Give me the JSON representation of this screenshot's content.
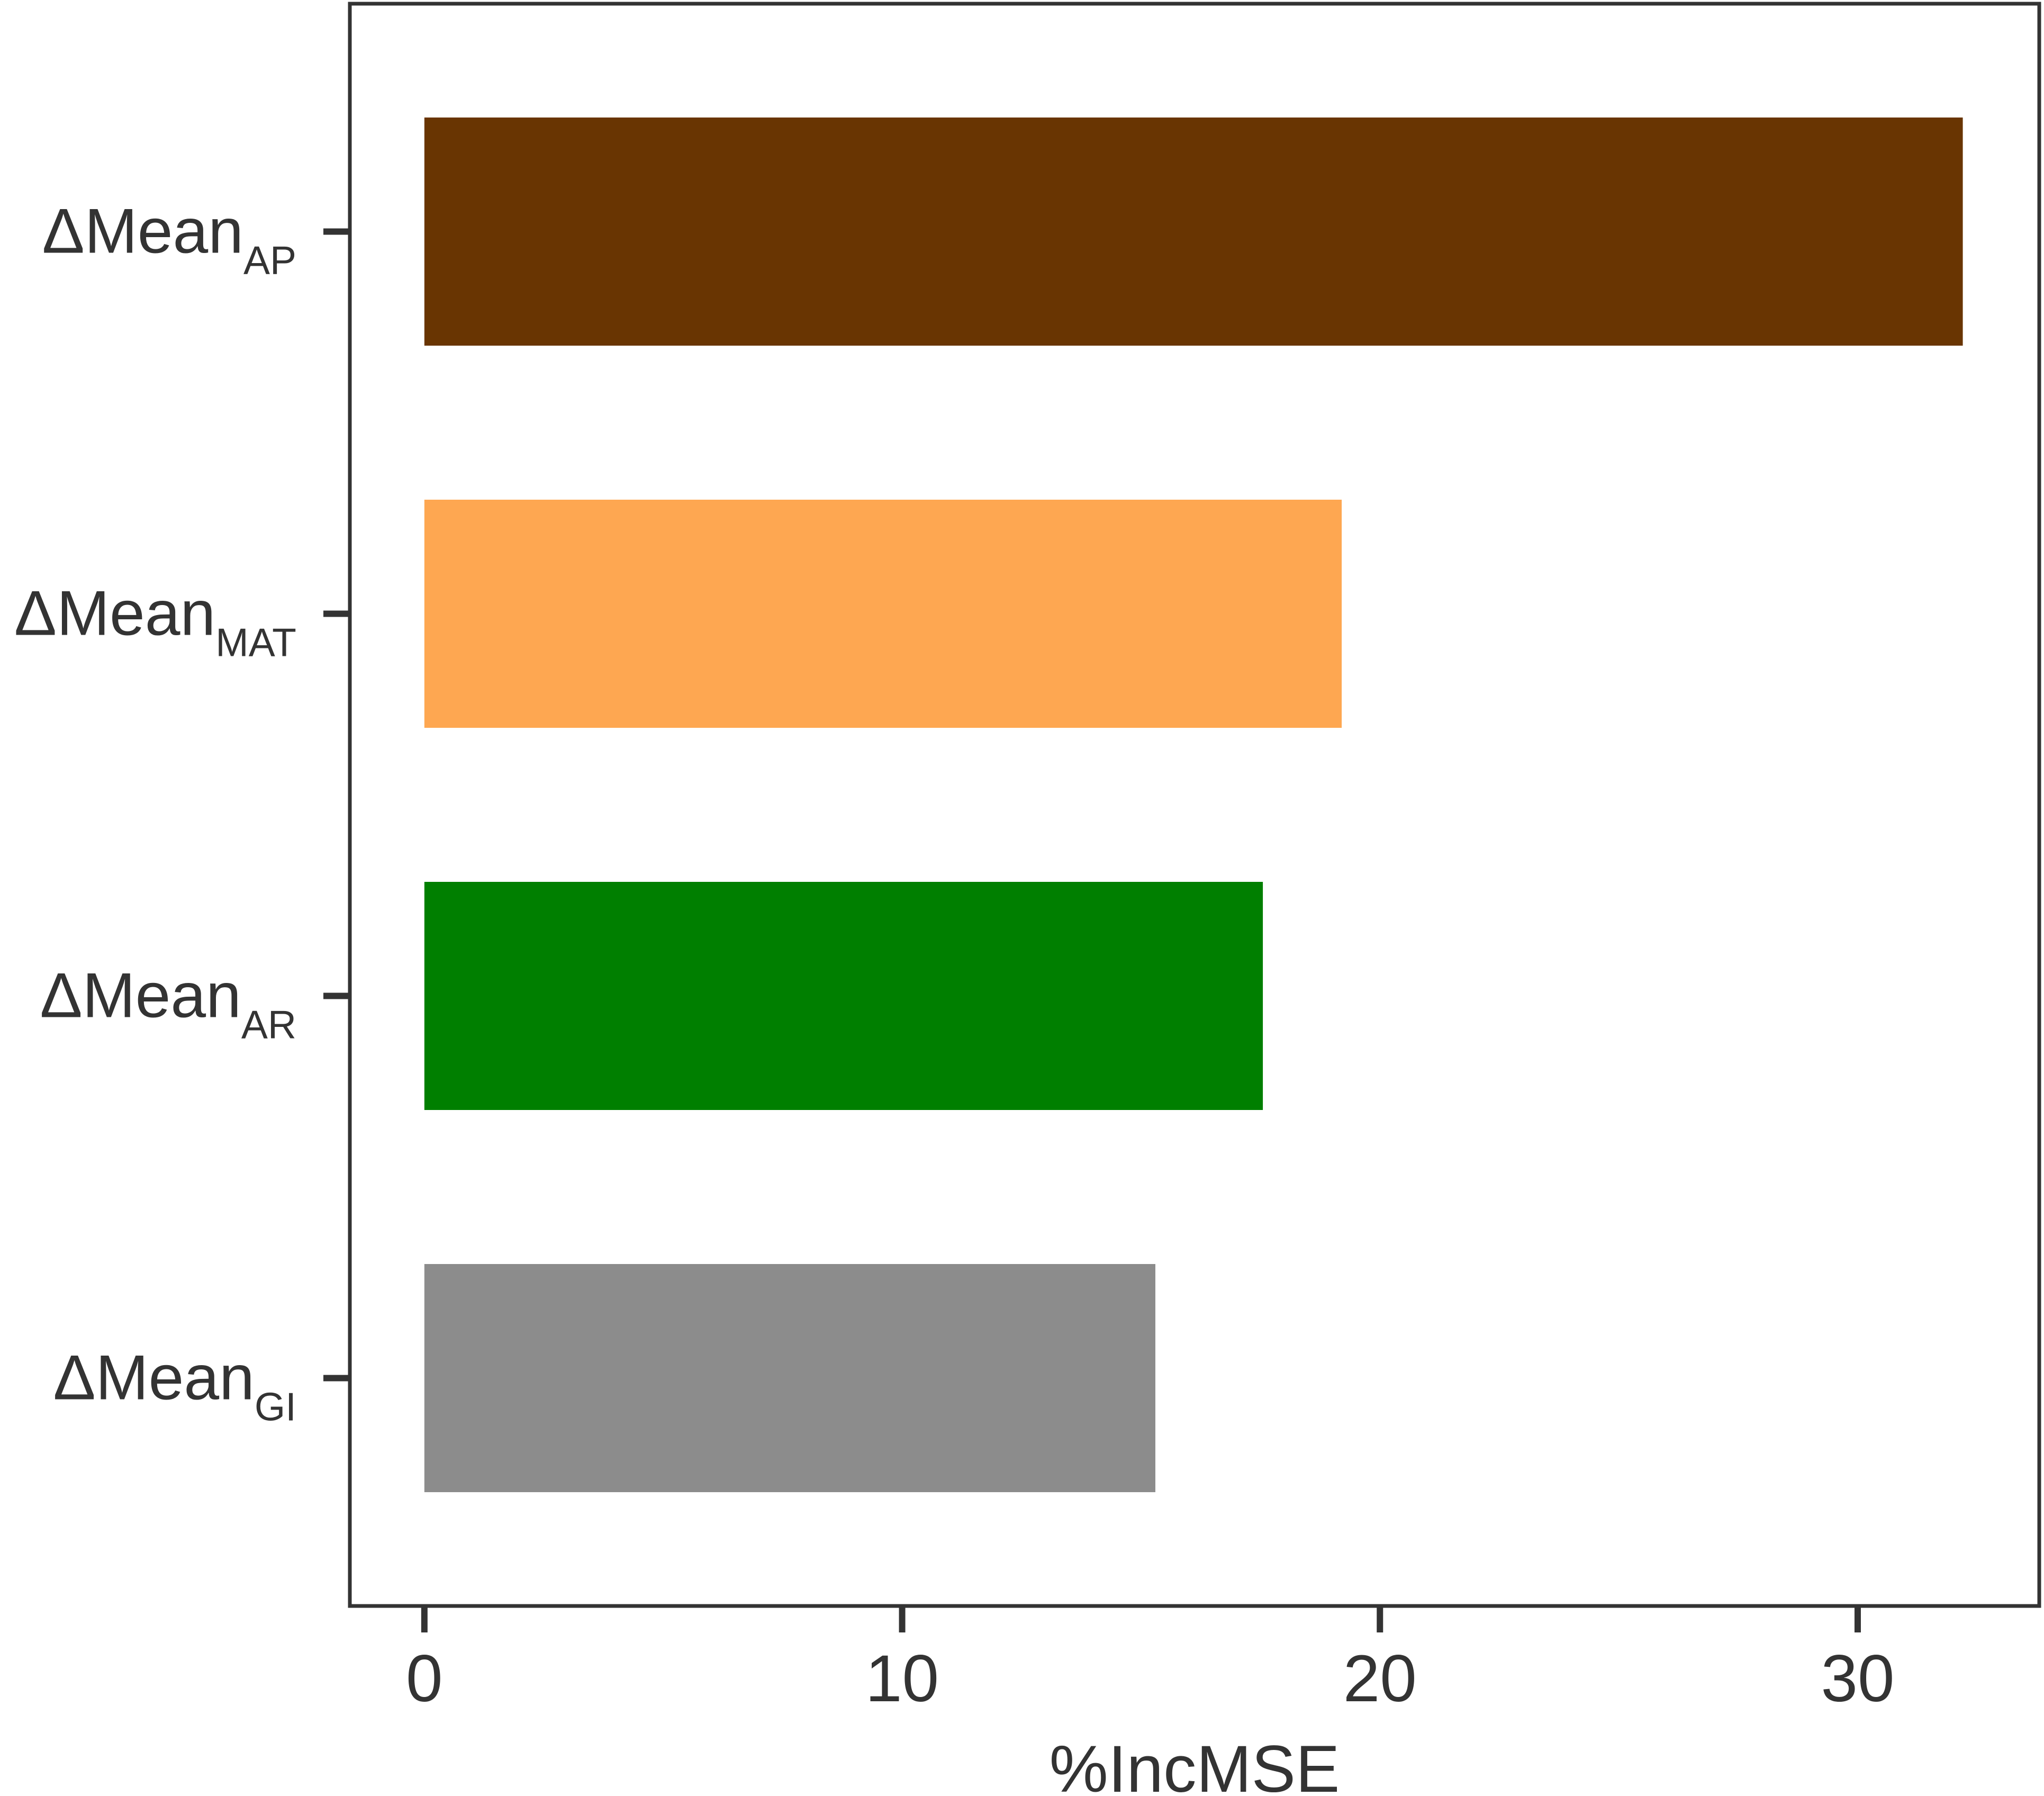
{
  "chart_data": {
    "type": "barh",
    "categories": [
      {
        "text": "ΔMean",
        "subscript": "AP"
      },
      {
        "text": "ΔMean",
        "subscript": "MAT"
      },
      {
        "text": "ΔMean",
        "subscript": "AR"
      },
      {
        "text": "ΔMean",
        "subscript": "GI"
      }
    ],
    "values": [
      32.2,
      19.2,
      17.55,
      15.3
    ],
    "colors": [
      "#693502",
      "#fea751",
      "#007f00",
      "#8c8c8c"
    ],
    "x_label": "%IncMSE",
    "xlim": [
      -1.56,
      33.8
    ],
    "xticks": [
      0,
      10,
      20,
      30
    ],
    "grid": false
  }
}
